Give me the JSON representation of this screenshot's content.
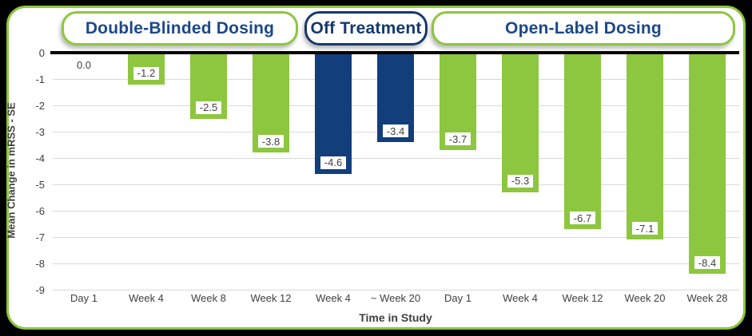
{
  "phases": [
    {
      "label": "Double-Blinded Dosing",
      "style": "green"
    },
    {
      "label": "Off Treatment",
      "style": "navy"
    },
    {
      "label": "Open-Label Dosing",
      "style": "green"
    }
  ],
  "colors": {
    "bar_green": "#8dc63f",
    "bar_navy": "#123e7c",
    "pill_text_blue": "#1b4889",
    "pill_border_green": "#8dc63f",
    "pill_border_navy": "#15396d",
    "gridline": "#d9d9d9",
    "axis_text": "#404040",
    "zero_line": "#000000",
    "panel_border": "#8dc63f",
    "background": "#000000"
  },
  "chart_data": {
    "type": "bar",
    "title": "",
    "categories": [
      "Day 1",
      "Week 4",
      "Week 8",
      "Week 12",
      "Week 4",
      "~ Week 20",
      "Day 1",
      "Week 4",
      "Week 12",
      "Week 20",
      "Week 28"
    ],
    "values": [
      0.0,
      -1.2,
      -2.5,
      -3.8,
      -4.6,
      -3.4,
      -3.7,
      -5.3,
      -6.7,
      -7.1,
      -8.4
    ],
    "value_labels": [
      "0.0",
      "-1.2",
      "-2.5",
      "-3.8",
      "-4.6",
      "-3.4",
      "-3.7",
      "-5.3",
      "-6.7",
      "-7.1",
      "-8.4"
    ],
    "bar_colors": [
      "green",
      "green",
      "green",
      "green",
      "navy",
      "navy",
      "green",
      "green",
      "green",
      "green",
      "green"
    ],
    "phase_of_bar": [
      "Double-Blinded Dosing",
      "Double-Blinded Dosing",
      "Double-Blinded Dosing",
      "Double-Blinded Dosing",
      "Off Treatment",
      "Off Treatment",
      "Open-Label Dosing",
      "Open-Label Dosing",
      "Open-Label Dosing",
      "Open-Label Dosing",
      "Open-Label Dosing"
    ],
    "xlabel": "Time in Study",
    "ylabel": "Mean Change in mRSS - SE",
    "ylim": [
      -9,
      0
    ],
    "ytick_labels": [
      "0",
      "-1",
      "-2",
      "-3",
      "-4",
      "-5",
      "-6",
      "-7",
      "-8",
      "-9"
    ],
    "grid": true,
    "legend": "none"
  }
}
